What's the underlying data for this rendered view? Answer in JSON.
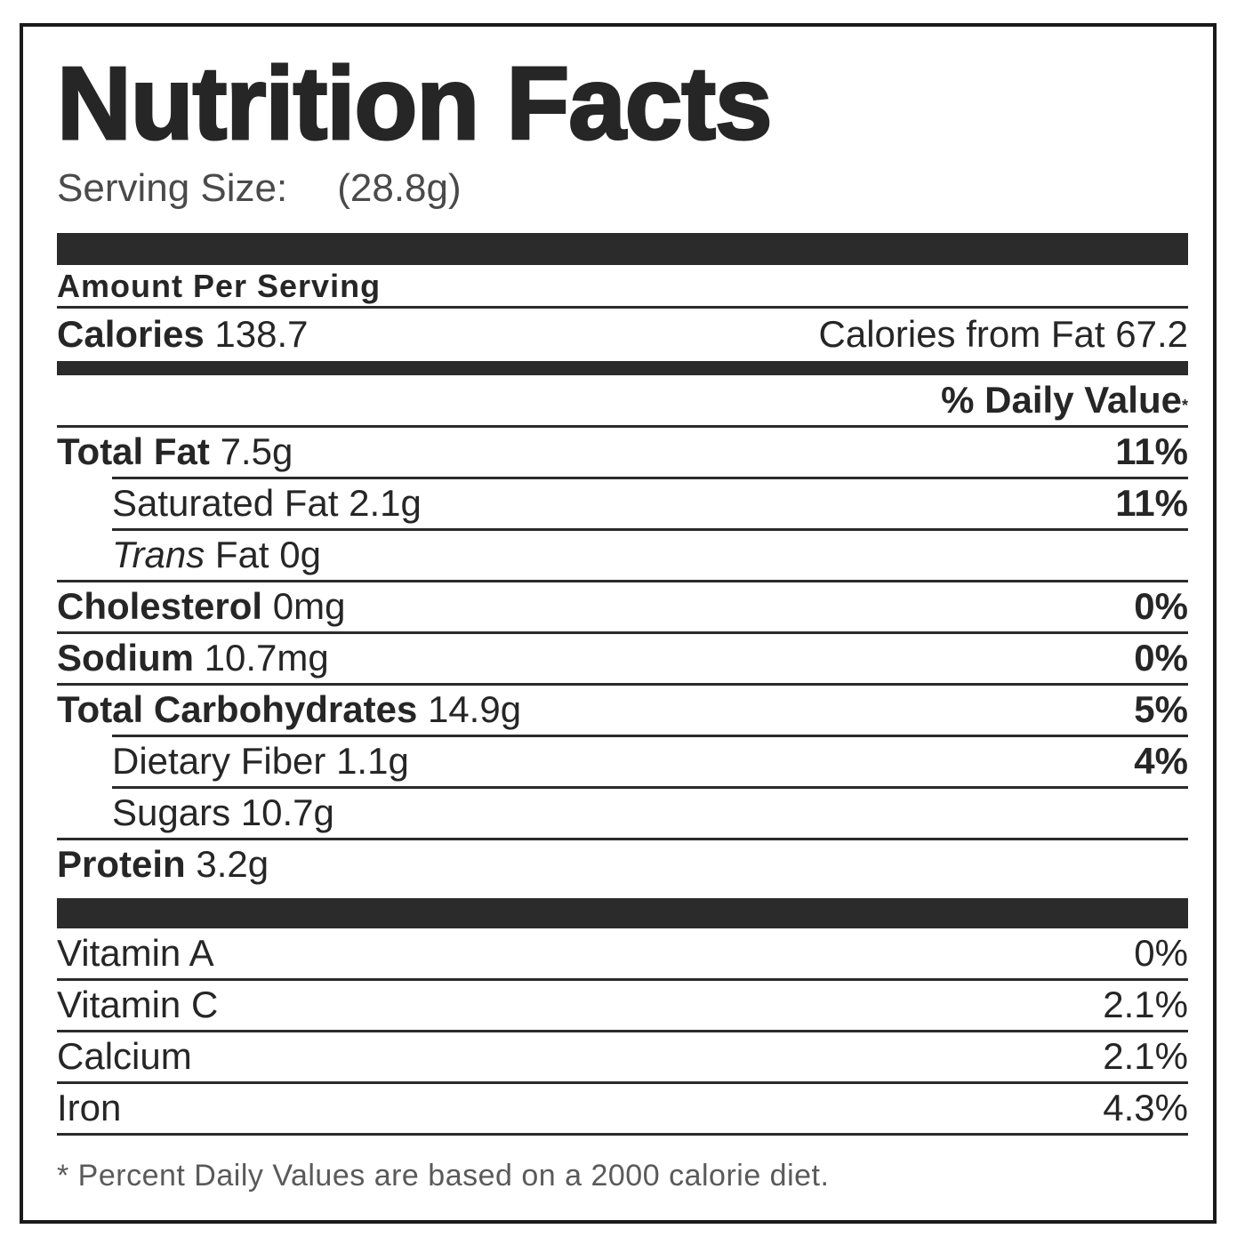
{
  "title": "Nutrition Facts",
  "serving": {
    "label": "Serving Size:",
    "value": "(28.8g)"
  },
  "amount_per_serving": "Amount Per Serving",
  "calories": {
    "label": "Calories",
    "value": "138.7",
    "fat_label": "Calories from Fat",
    "fat_value": "67.2"
  },
  "daily_value_header": "% Daily Value",
  "daily_value_mark": "*",
  "nutrients": {
    "total_fat": {
      "label": "Total Fat",
      "amount": "7.5g",
      "dv": "11%"
    },
    "saturated_fat": {
      "label": "Saturated Fat",
      "amount": "2.1g",
      "dv": "11%"
    },
    "trans_fat": {
      "label_italic": "Trans",
      "label": "Fat",
      "amount": "0g"
    },
    "cholesterol": {
      "label": "Cholesterol",
      "amount": "0mg",
      "dv": "0%"
    },
    "sodium": {
      "label": "Sodium",
      "amount": "10.7mg",
      "dv": "0%"
    },
    "total_carbs": {
      "label": "Total Carbohydrates",
      "amount": "14.9g",
      "dv": "5%"
    },
    "dietary_fiber": {
      "label": "Dietary Fiber",
      "amount": "1.1g",
      "dv": "4%"
    },
    "sugars": {
      "label": "Sugars",
      "amount": "10.7g"
    },
    "protein": {
      "label": "Protein",
      "amount": "3.2g"
    }
  },
  "vitamins": {
    "vitamin_a": {
      "label": "Vitamin A",
      "dv": "0%"
    },
    "vitamin_c": {
      "label": "Vitamin C",
      "dv": "2.1%"
    },
    "calcium": {
      "label": "Calcium",
      "dv": "2.1%"
    },
    "iron": {
      "label": "Iron",
      "dv": "4.3%"
    }
  },
  "footnote": "* Percent Daily Values are based on a 2000 calorie diet."
}
